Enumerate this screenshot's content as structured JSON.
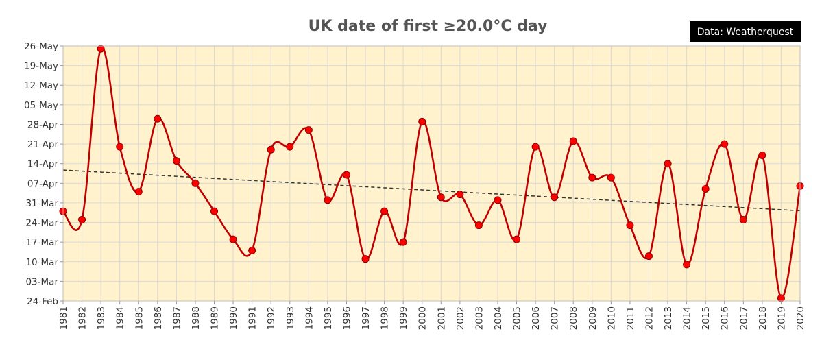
{
  "chart_data": {
    "type": "line",
    "title": "UK date of first ≥20.0°C day",
    "source_label": "Data: Weatherquest",
    "xlabel": "",
    "ylabel": "",
    "x": [
      1981,
      1982,
      1983,
      1984,
      1985,
      1986,
      1987,
      1988,
      1989,
      1990,
      1991,
      1992,
      1993,
      1994,
      1995,
      1996,
      1997,
      1998,
      1999,
      2000,
      2001,
      2002,
      2003,
      2004,
      2005,
      2006,
      2007,
      2008,
      2009,
      2010,
      2011,
      2012,
      2013,
      2014,
      2015,
      2016,
      2017,
      2018,
      2019,
      2020
    ],
    "x_tick_labels": [
      "1981",
      "1982",
      "1983",
      "1984",
      "1985",
      "1986",
      "1987",
      "1988",
      "1989",
      "1990",
      "1991",
      "1992",
      "1993",
      "1994",
      "1995",
      "1996",
      "1997",
      "1998",
      "1999",
      "2000",
      "2001",
      "2002",
      "2003",
      "2004",
      "2005",
      "2006",
      "2007",
      "2008",
      "2009",
      "2010",
      "2011",
      "2012",
      "2013",
      "2014",
      "2015",
      "2016",
      "2017",
      "2018",
      "2019",
      "2020"
    ],
    "y_tick_labels": [
      "24-Feb",
      "03-Mar",
      "10-Mar",
      "17-Mar",
      "24-Mar",
      "31-Mar",
      "07-Apr",
      "14-Apr",
      "21-Apr",
      "28-Apr",
      "05-May",
      "12-May",
      "19-May",
      "26-May"
    ],
    "y_tick_values": [
      "2001-02-24",
      "2001-03-03",
      "2001-03-10",
      "2001-03-17",
      "2001-03-24",
      "2001-03-31",
      "2001-04-07",
      "2001-04-14",
      "2001-04-21",
      "2001-04-28",
      "2001-05-05",
      "2001-05-12",
      "2001-05-19",
      "2001-05-26"
    ],
    "ylim": [
      "2001-02-24",
      "2001-05-26"
    ],
    "series": [
      {
        "values": [
          "2001-03-28",
          "2001-03-25",
          "2001-05-25",
          "2001-04-20",
          "2001-04-04",
          "2001-04-30",
          "2001-04-15",
          "2001-04-07",
          "2001-03-28",
          "2001-03-18",
          "2001-03-14",
          "2001-04-19",
          "2001-04-20",
          "2001-04-26",
          "2001-04-01",
          "2001-04-10",
          "2001-03-11",
          "2001-03-28",
          "2001-03-17",
          "2001-04-29",
          "2001-04-02",
          "2001-04-03",
          "2001-03-23",
          "2001-04-01",
          "2001-03-18",
          "2001-04-20",
          "2001-04-02",
          "2001-04-22",
          "2001-04-09",
          "2001-04-09",
          "2001-03-23",
          "2001-03-12",
          "2001-04-14",
          "2001-03-09",
          "2001-04-05",
          "2001-04-21",
          "2001-03-25",
          "2001-04-17",
          "2001-02-25",
          "2001-04-06"
        ],
        "color": "#c00000",
        "marker_color": "#ff0000",
        "smooth": true
      }
    ],
    "trendline": {
      "type": "linear",
      "style": "dashed",
      "color": "#333333"
    },
    "grid": true,
    "legend": "none",
    "colors": {
      "plot_background": "#fff2cc",
      "grid": "#d9d9d9",
      "title": "#555555",
      "source_background": "#000000",
      "source_text": "#ffffff"
    }
  }
}
